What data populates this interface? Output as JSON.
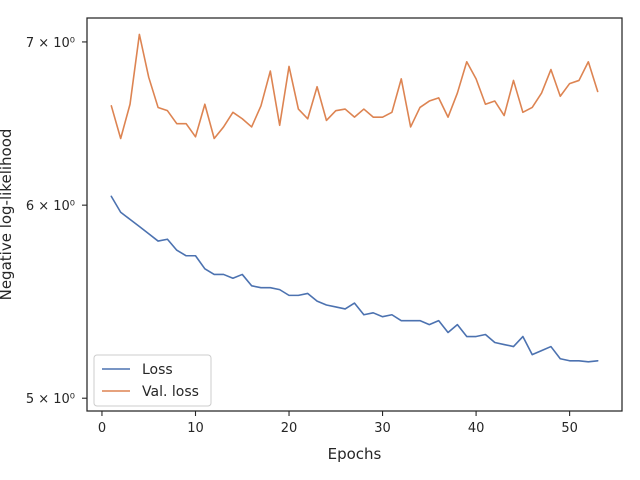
{
  "chart_data": {
    "type": "line",
    "title": "",
    "xlabel": "Epochs",
    "ylabel": "Negative log-likelihood",
    "xlim": [
      -1.6,
      55.6
    ],
    "ylim": [
      4.94,
      7.16
    ],
    "yscale": "log",
    "grid": false,
    "legend_position": "lower-left",
    "x_ticks": [
      0,
      10,
      20,
      30,
      40,
      50
    ],
    "x_tick_labels": [
      "0",
      "10",
      "20",
      "30",
      "40",
      "50"
    ],
    "y_ticks": [
      5,
      6,
      7
    ],
    "y_tick_labels": [
      "5 × 10⁰",
      "6 × 10⁰",
      "7 × 10⁰"
    ],
    "x": [
      1,
      2,
      3,
      4,
      5,
      6,
      7,
      8,
      9,
      10,
      11,
      12,
      13,
      14,
      15,
      16,
      17,
      18,
      19,
      20,
      21,
      22,
      23,
      24,
      25,
      26,
      27,
      28,
      29,
      30,
      31,
      32,
      33,
      34,
      35,
      36,
      37,
      38,
      39,
      40,
      41,
      42,
      43,
      44,
      45,
      46,
      47,
      48,
      49,
      50,
      51,
      52,
      53
    ],
    "series": [
      {
        "name": "Loss",
        "color": "#4c72b0",
        "values": [
          6.05,
          5.96,
          5.92,
          5.88,
          5.84,
          5.8,
          5.81,
          5.75,
          5.72,
          5.72,
          5.65,
          5.62,
          5.62,
          5.6,
          5.62,
          5.56,
          5.55,
          5.55,
          5.54,
          5.51,
          5.51,
          5.52,
          5.48,
          5.46,
          5.45,
          5.44,
          5.47,
          5.41,
          5.42,
          5.4,
          5.41,
          5.38,
          5.38,
          5.38,
          5.36,
          5.38,
          5.32,
          5.36,
          5.3,
          5.3,
          5.31,
          5.27,
          5.26,
          5.25,
          5.3,
          5.21,
          5.23,
          5.25,
          5.19,
          5.18,
          5.18,
          5.175,
          5.18
        ]
      },
      {
        "name": "Val. loss",
        "color": "#dd8452",
        "values": [
          6.59,
          6.39,
          6.6,
          7.05,
          6.77,
          6.58,
          6.56,
          6.48,
          6.48,
          6.4,
          6.6,
          6.39,
          6.46,
          6.55,
          6.51,
          6.46,
          6.59,
          6.81,
          6.47,
          6.84,
          6.57,
          6.51,
          6.71,
          6.5,
          6.56,
          6.57,
          6.52,
          6.57,
          6.52,
          6.52,
          6.55,
          6.76,
          6.46,
          6.58,
          6.62,
          6.64,
          6.52,
          6.67,
          6.87,
          6.76,
          6.6,
          6.62,
          6.53,
          6.75,
          6.55,
          6.58,
          6.67,
          6.82,
          6.65,
          6.73,
          6.75,
          6.87,
          6.68
        ]
      }
    ]
  }
}
